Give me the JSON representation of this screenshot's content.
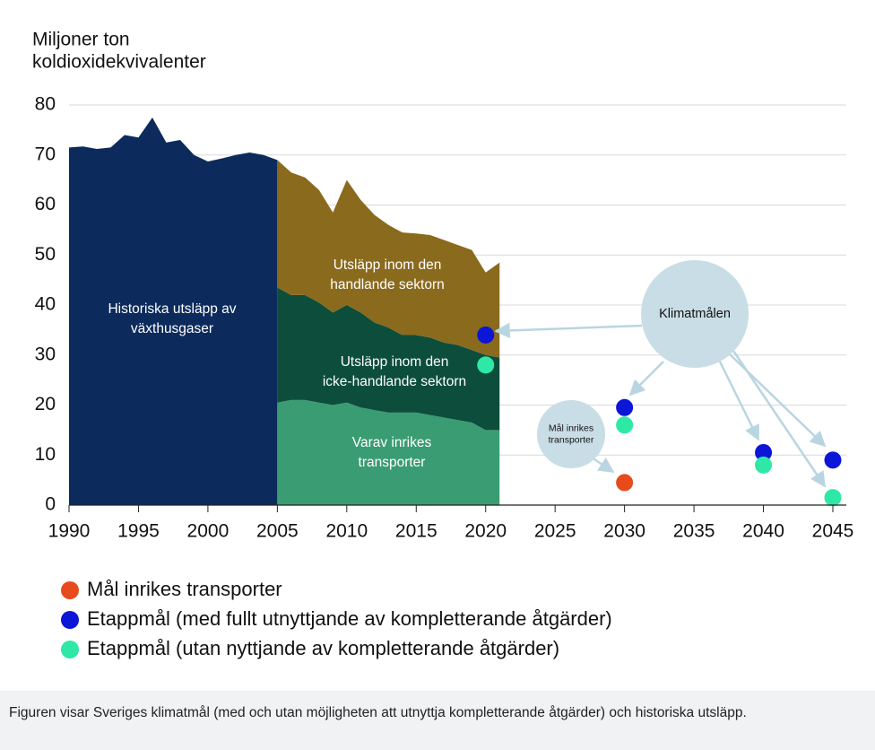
{
  "chart_data": {
    "type": "area",
    "ylabel": [
      "Miljoner ton",
      "koldioxidekvivalenter"
    ],
    "xlim": [
      1990,
      2045
    ],
    "xticks": [
      1990,
      1995,
      2000,
      2005,
      2010,
      2015,
      2020,
      2025,
      2030,
      2035,
      2040,
      2045
    ],
    "ylim": [
      0,
      80
    ],
    "yticks": [
      0,
      10,
      20,
      30,
      40,
      50,
      60,
      70,
      80
    ],
    "grid": true,
    "series": [
      {
        "name": "Historiska utsläpp av växthusgaser",
        "color": "#0c2b5c",
        "x": [
          1990,
          1991,
          1992,
          1993,
          1994,
          1995,
          1996,
          1997,
          1998,
          1999,
          2000,
          2001,
          2002,
          2003,
          2004,
          2005
        ],
        "values": [
          71.5,
          71.7,
          71.2,
          71.5,
          74,
          73.5,
          77.5,
          72.5,
          73,
          70,
          68.7,
          69.3,
          70,
          70.5,
          70,
          69
        ]
      },
      {
        "name": "Varav inrikes transporter",
        "color": "#3a9c72",
        "x": [
          2005,
          2006,
          2007,
          2008,
          2009,
          2010,
          2011,
          2012,
          2013,
          2014,
          2015,
          2016,
          2017,
          2018,
          2019,
          2020,
          2021
        ],
        "values": [
          20.5,
          21,
          21,
          20.5,
          20,
          20.5,
          19.5,
          19,
          18.5,
          18.5,
          18.5,
          18,
          17.5,
          17,
          16.5,
          15,
          15
        ]
      },
      {
        "name": "Utsläpp inom den icke-handlande sektorn",
        "color": "#0d4d3b",
        "x": [
          2005,
          2006,
          2007,
          2008,
          2009,
          2010,
          2011,
          2012,
          2013,
          2014,
          2015,
          2016,
          2017,
          2018,
          2019,
          2020,
          2021
        ],
        "values": [
          23,
          21,
          21,
          20,
          18.5,
          19.5,
          19,
          17.5,
          17,
          15.5,
          15.5,
          15.5,
          15,
          15,
          14.5,
          15,
          14.5
        ]
      },
      {
        "name": "Utsläpp inom den handlande sektorn",
        "color": "#8a6a1d",
        "x": [
          2005,
          2006,
          2007,
          2008,
          2009,
          2010,
          2011,
          2012,
          2013,
          2014,
          2015,
          2016,
          2017,
          2018,
          2019,
          2020,
          2021
        ],
        "values": [
          25.5,
          24.5,
          23.5,
          22.5,
          20,
          25,
          22.5,
          21.5,
          20.5,
          20.5,
          20.3,
          20.5,
          20.5,
          20,
          20,
          16.5,
          19
        ]
      }
    ],
    "area_labels": [
      [
        "Historiska utsläpp av",
        "växthusgaser"
      ],
      [
        "Varav inrikes",
        "transporter"
      ],
      [
        "Utsläpp inom den",
        "icke-handlande sektorn"
      ],
      [
        "Utsläpp inom den",
        "handlande sektorn"
      ]
    ],
    "points": [
      {
        "name": "Mål inrikes transporter",
        "color": "#e84a1c",
        "x": [
          2030
        ],
        "values": [
          4.5
        ]
      },
      {
        "name": "Etappmål (med fullt utnyttjande av kompletterande åtgärder)",
        "color": "#0b16d6",
        "x": [
          2020,
          2030,
          2040,
          2045
        ],
        "values": [
          34,
          19.5,
          10.5,
          9
        ]
      },
      {
        "name": "Etappmål (utan nyttjande av kompletterande åtgärder)",
        "color": "#2ee8a6",
        "x": [
          2020,
          2030,
          2040,
          2045
        ],
        "values": [
          28,
          16,
          8,
          1.5
        ]
      }
    ],
    "annotations": [
      [
        "Klimatmålen"
      ],
      [
        "Mål inrikes",
        "transporter"
      ]
    ],
    "caption": "Figuren visar Sveriges klimatmål (med och utan möjligheten att utnyttja kompletterande åtgärder) och historiska utsläpp."
  }
}
